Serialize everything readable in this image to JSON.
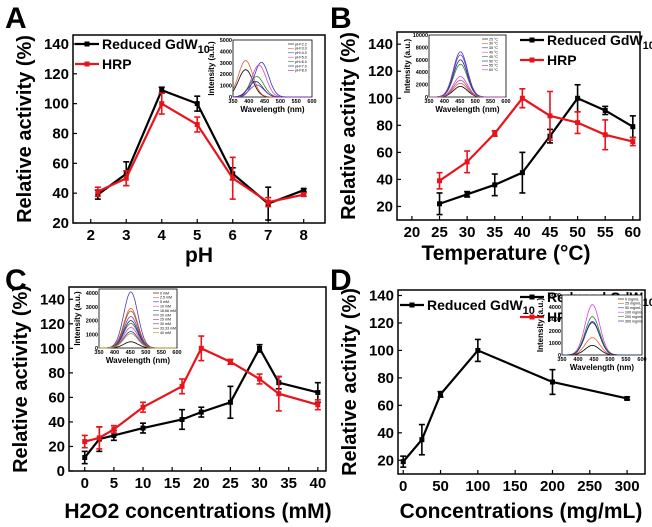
{
  "colors": {
    "gdw": "#000000",
    "hrp": "#e8141c"
  },
  "chart_data": [
    {
      "panel": "A",
      "type": "line",
      "xlabel": "pH",
      "ylabel": "Relative activity (%)",
      "xlim": [
        1.5,
        8.6
      ],
      "ylim": [
        20,
        146
      ],
      "xticks": [
        2,
        3,
        4,
        5,
        6,
        7,
        8
      ],
      "yticks": [
        20,
        40,
        60,
        80,
        100,
        120,
        140
      ],
      "legend": "top-left",
      "series": [
        {
          "name": "Reduced GdW10",
          "color": "#000000",
          "x": [
            2.2,
            3,
            4,
            5,
            6,
            7,
            8
          ],
          "y": [
            39,
            53,
            109,
            100,
            53,
            33,
            42
          ],
          "err": [
            3,
            8,
            2,
            5,
            4,
            11,
            1
          ]
        },
        {
          "name": "HRP",
          "color": "#e8141c",
          "x": [
            2.2,
            3,
            4,
            5,
            6,
            7,
            8
          ],
          "y": [
            41,
            50,
            100,
            86,
            50,
            34,
            39
          ],
          "err": [
            3,
            5,
            7,
            5,
            14,
            3,
            1
          ]
        }
      ],
      "inset": {
        "xlabel": "Wavelength (nm)",
        "ylabel": "Intensity (a.u.)",
        "xlim": [
          350,
          600
        ],
        "ylim": [
          0,
          5000
        ],
        "xticks": [
          350,
          400,
          450,
          500,
          550,
          600
        ],
        "yticks": [
          0,
          1000,
          2000,
          3000,
          4000,
          5000
        ],
        "series": [
          {
            "name": "pH=2.2",
            "color": "#000000",
            "peak": 390,
            "max": 2400
          },
          {
            "name": "pH=3.0",
            "color": "#e06038",
            "peak": 390,
            "max": 3200
          },
          {
            "name": "pH=4.0",
            "color": "#2a3cc8",
            "peak": 440,
            "max": 3050
          },
          {
            "name": "pH=5.0",
            "color": "#e040e0",
            "peak": 432,
            "max": 2800
          },
          {
            "name": "pH=6.0",
            "color": "#2a8a2a",
            "peak": 425,
            "max": 1800
          },
          {
            "name": "pH=7.0",
            "color": "#1a2a70",
            "peak": 422,
            "max": 1350
          },
          {
            "name": "pH=8.0",
            "color": "#8a30c8",
            "peak": 425,
            "max": 1050
          }
        ]
      }
    },
    {
      "panel": "B",
      "type": "line",
      "xlabel": "Temperature (°C)",
      "ylabel": "Relative activity (%)",
      "xlim": [
        17.3,
        61.3
      ],
      "ylim": [
        10,
        149
      ],
      "xticks": [
        20,
        25,
        30,
        35,
        40,
        45,
        50,
        55,
        60
      ],
      "yticks": [
        20,
        40,
        60,
        80,
        100,
        120,
        140
      ],
      "legend": "top-right",
      "series": [
        {
          "name": "Reduced GdW10",
          "color": "#000000",
          "x": [
            25,
            30,
            35,
            40,
            45,
            50,
            55,
            60
          ],
          "y": [
            22,
            29,
            36,
            45,
            72,
            100,
            91,
            79
          ],
          "err": [
            8,
            2,
            8,
            15,
            5,
            10,
            3,
            8
          ]
        },
        {
          "name": "HRP",
          "color": "#e8141c",
          "x": [
            25,
            30,
            35,
            40,
            45,
            50,
            55,
            60
          ],
          "y": [
            39,
            53,
            74,
            100,
            87,
            82,
            73,
            68
          ],
          "err": [
            6,
            8,
            2,
            7,
            18,
            8,
            11,
            3
          ]
        }
      ],
      "inset": {
        "xlabel": "Wavelength (nm)",
        "ylabel": "Intensity (a.u.)",
        "xlim": [
          350,
          600
        ],
        "ylim": [
          0,
          10000
        ],
        "xticks": [
          350,
          400,
          450,
          500,
          550,
          600
        ],
        "yticks": [
          0,
          2000,
          4000,
          6000,
          8000,
          10000
        ],
        "series": [
          {
            "name": "25 °C",
            "color": "#000000",
            "peak": 452,
            "max": 1700
          },
          {
            "name": "30 °C",
            "color": "#e06038",
            "peak": 452,
            "max": 2200
          },
          {
            "name": "35 °C",
            "color": "#2a3cc8",
            "peak": 452,
            "max": 7300
          },
          {
            "name": "40 °C",
            "color": "#e040e0",
            "peak": 452,
            "max": 3300
          },
          {
            "name": "45 °C",
            "color": "#2a8a2a",
            "peak": 452,
            "max": 5300
          },
          {
            "name": "50 °C",
            "color": "#1a2a70",
            "peak": 452,
            "max": 6000
          },
          {
            "name": "55 °C",
            "color": "#8a30c8",
            "peak": 452,
            "max": 6800
          },
          {
            "name": "60 °C",
            "color": "#a05a8a",
            "peak": 452,
            "max": 2700
          }
        ]
      }
    },
    {
      "panel": "C",
      "type": "line",
      "xlabel": "H2O2  concentrations (mM)",
      "ylabel": "Relative activity (%)",
      "xlim": [
        -2.7,
        41.4
      ],
      "ylim": [
        0,
        150
      ],
      "xticks": [
        0,
        5,
        10,
        15,
        20,
        25,
        30,
        35,
        40
      ],
      "yticks": [
        0,
        20,
        40,
        60,
        80,
        100,
        120,
        140
      ],
      "legend": "top-right",
      "series": [
        {
          "name": "Reduced GdW10",
          "color": "#000000",
          "x": [
            0,
            2.5,
            5,
            10,
            16.7,
            20,
            25,
            30,
            33.3,
            40
          ],
          "y": [
            11,
            26,
            29,
            35,
            42,
            48,
            56,
            100,
            72,
            64
          ],
          "err": [
            5,
            10,
            4,
            4,
            8,
            4,
            13,
            3,
            5,
            8
          ]
        },
        {
          "name": "HRP",
          "color": "#e8141c",
          "x": [
            0,
            2.5,
            5,
            10,
            16.7,
            20,
            25,
            30,
            33.3,
            40
          ],
          "y": [
            24,
            27,
            34,
            52,
            69,
            100,
            89,
            75,
            63,
            54
          ],
          "err": [
            5,
            9,
            3,
            4,
            6,
            10,
            2,
            4,
            14,
            4
          ]
        }
      ],
      "inset": {
        "xlabel": "Wavelength (nm)",
        "ylabel": "Intensity (a.u.)",
        "xlim": [
          350,
          600
        ],
        "ylim": [
          0,
          4300
        ],
        "xticks": [
          350,
          400,
          450,
          500,
          550,
          600
        ],
        "yticks": [
          0,
          1000,
          2000,
          3000,
          4000
        ],
        "series": [
          {
            "name": "0 mM",
            "color": "#000000",
            "peak": 452,
            "max": 450
          },
          {
            "name": "2.5 mM",
            "color": "#e06038",
            "peak": 452,
            "max": 2900
          },
          {
            "name": "5 mM",
            "color": "#2a3cc8",
            "peak": 452,
            "max": 1200
          },
          {
            "name": "10 mM",
            "color": "#e040e0",
            "peak": 452,
            "max": 1500
          },
          {
            "name": "16.66 mM",
            "color": "#2a8a2a",
            "peak": 452,
            "max": 1800
          },
          {
            "name": "20 mM",
            "color": "#1a2a70",
            "peak": 452,
            "max": 2000
          },
          {
            "name": "25 mM",
            "color": "#8a30c8",
            "peak": 452,
            "max": 2300
          },
          {
            "name": "30 mM",
            "color": "#5a3aa0",
            "peak": 452,
            "max": 4100
          },
          {
            "name": "33.33 mM",
            "color": "#8a5a20",
            "peak": 452,
            "max": 2700
          },
          {
            "name": "40 mM",
            "color": "#b0a020",
            "peak": 452,
            "max": 1050
          }
        ]
      }
    },
    {
      "panel": "D",
      "type": "line",
      "xlabel": "Concentrations (mg/mL)",
      "ylabel": "Relative activity (%)",
      "xlim": [
        -7,
        324
      ],
      "ylim": [
        10,
        144
      ],
      "xticks": [
        0,
        50,
        100,
        150,
        200,
        250,
        300
      ],
      "yticks": [
        20,
        40,
        60,
        80,
        100,
        120,
        140
      ],
      "legend": "top-left",
      "series": [
        {
          "name": "Reduced GdW10",
          "color": "#000000",
          "x": [
            0,
            25,
            50,
            100,
            200,
            300
          ],
          "y": [
            19,
            35,
            68,
            100,
            77,
            65
          ],
          "err": [
            4,
            11,
            2,
            8,
            9,
            1
          ]
        }
      ],
      "inset": {
        "xlabel": "Wavelength (nm)",
        "ylabel": "Intensity (a.u.)",
        "xlim": [
          350,
          600
        ],
        "ylim": [
          0,
          5000
        ],
        "xticks": [
          350,
          400,
          450,
          500,
          550,
          600
        ],
        "yticks": [
          0,
          1000,
          2000,
          3000,
          4000,
          5000
        ],
        "series": [
          {
            "name": "0 mg/mL",
            "color": "#000000",
            "peak": 445,
            "max": 800
          },
          {
            "name": "25 mg/mL",
            "color": "#e06038",
            "peak": 445,
            "max": 1450
          },
          {
            "name": "50 mg/mL",
            "color": "#2a3cc8",
            "peak": 445,
            "max": 2800
          },
          {
            "name": "100 mg/mL",
            "color": "#e040e0",
            "peak": 445,
            "max": 4200
          },
          {
            "name": "200 mg/mL",
            "color": "#2a8a2a",
            "peak": 445,
            "max": 3200
          },
          {
            "name": "300 mg/mL",
            "color": "#1a2a70",
            "peak": 445,
            "max": 2700
          }
        ]
      }
    }
  ]
}
